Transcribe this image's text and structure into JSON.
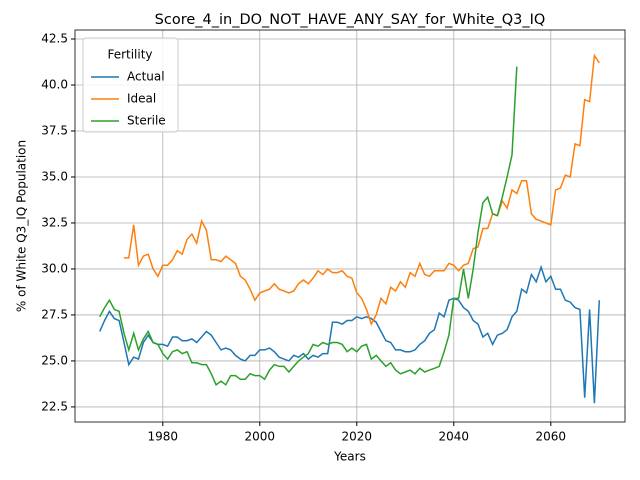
{
  "chart_data": {
    "type": "line",
    "title": "Score_4_in_DO_NOT_HAVE_ANY_SAY_for_White_Q3_IQ",
    "x_label": "Years",
    "y_label": "% of White Q3_IQ Population",
    "legend_title": "Fertility",
    "legend_position": "upper left",
    "grid": true,
    "xlim": [
      1961.9,
      2075.3
    ],
    "ylim": [
      21.68,
      42.99
    ],
    "xticks": [
      1980,
      2000,
      2020,
      2040,
      2060
    ],
    "yticks": [
      22.5,
      {
        "value": 25,
        "label": "25.0"
      },
      27.5,
      {
        "value": 30,
        "label": "30.0"
      },
      32.5,
      {
        "value": 35,
        "label": "35.0"
      },
      37.5,
      {
        "value": 40,
        "label": "40.0"
      },
      42.5
    ],
    "x": [
      1967,
      1968,
      1969,
      1970,
      1971,
      1972,
      1973,
      1974,
      1975,
      1976,
      1977,
      1978,
      1979,
      1980,
      1981,
      1982,
      1983,
      1984,
      1985,
      1986,
      1987,
      1988,
      1989,
      1990,
      1991,
      1992,
      1993,
      1994,
      1995,
      1996,
      1997,
      1998,
      1999,
      2000,
      2001,
      2002,
      2003,
      2004,
      2005,
      2006,
      2007,
      2008,
      2009,
      2010,
      2011,
      2012,
      2013,
      2014,
      2015,
      2016,
      2017,
      2018,
      2019,
      2020,
      2021,
      2022,
      2023,
      2024,
      2025,
      2026,
      2027,
      2028,
      2029,
      2030,
      2031,
      2032,
      2033,
      2034,
      2035,
      2036,
      2037,
      2038,
      2039,
      2040,
      2041,
      2042,
      2043,
      2044,
      2045,
      2046,
      2047,
      2048,
      2049,
      2050,
      2051,
      2052,
      2053,
      2054,
      2055,
      2056,
      2057,
      2058,
      2059,
      2060,
      2061,
      2062,
      2063,
      2064,
      2065,
      2066,
      2067,
      2068,
      2069,
      2070
    ],
    "series": [
      {
        "name": "Actual",
        "color": "#1f77b4",
        "values": [
          26.6,
          27.2,
          27.7,
          27.3,
          27.2,
          26.0,
          24.8,
          25.2,
          25.1,
          26.0,
          26.4,
          26.0,
          25.9,
          25.9,
          25.8,
          26.3,
          26.3,
          26.1,
          26.1,
          26.2,
          26.0,
          26.3,
          26.6,
          26.4,
          26.0,
          25.6,
          25.7,
          25.6,
          25.3,
          25.1,
          25.0,
          25.3,
          25.3,
          25.6,
          25.6,
          25.7,
          25.5,
          25.2,
          25.1,
          25.0,
          25.3,
          25.2,
          25.4,
          25.1,
          25.3,
          25.2,
          25.4,
          25.4,
          27.1,
          27.1,
          27.0,
          27.2,
          27.2,
          27.4,
          27.3,
          27.4,
          27.3,
          27.1,
          26.6,
          26.1,
          26.0,
          25.6,
          25.6,
          25.5,
          25.5,
          25.6,
          25.9,
          26.1,
          26.5,
          26.7,
          27.6,
          27.4,
          28.3,
          28.4,
          28.3,
          27.9,
          27.7,
          27.2,
          27.0,
          26.3,
          26.5,
          25.9,
          26.4,
          26.5,
          26.7,
          27.4,
          27.7,
          28.9,
          28.7,
          29.7,
          29.3,
          30.1,
          29.3,
          29.6,
          28.9,
          28.9,
          28.3,
          28.2,
          27.9,
          27.8,
          23.0,
          27.8,
          22.7,
          28.3
        ]
      },
      {
        "name": "Ideal",
        "color": "#ff7f0e",
        "values": [
          null,
          null,
          null,
          null,
          null,
          30.6,
          30.6,
          32.4,
          30.2,
          30.7,
          30.8,
          30.0,
          29.6,
          30.2,
          30.2,
          30.5,
          31.0,
          30.8,
          31.6,
          31.9,
          31.4,
          32.6,
          32.1,
          30.5,
          30.5,
          30.4,
          30.7,
          30.5,
          30.3,
          29.6,
          29.4,
          28.9,
          28.3,
          28.7,
          28.8,
          28.9,
          29.2,
          28.9,
          28.8,
          28.7,
          28.8,
          29.2,
          29.4,
          29.2,
          29.5,
          29.9,
          29.7,
          30.0,
          29.8,
          29.8,
          29.9,
          29.6,
          29.5,
          28.7,
          28.4,
          27.8,
          27.0,
          27.5,
          28.4,
          28.1,
          29.0,
          28.8,
          29.3,
          29.0,
          29.8,
          29.6,
          30.3,
          29.7,
          29.6,
          29.9,
          29.9,
          29.9,
          30.3,
          30.2,
          29.9,
          30.2,
          30.3,
          31.1,
          31.2,
          32.2,
          32.2,
          33.0,
          32.9,
          33.7,
          33.3,
          34.3,
          34.1,
          34.8,
          34.8,
          33.0,
          32.7,
          32.6,
          32.5,
          32.4,
          34.3,
          34.4,
          35.1,
          35.0,
          36.8,
          36.7,
          39.2,
          39.1,
          41.6,
          41.2
        ]
      },
      {
        "name": "Sterile",
        "color": "#2ca02c",
        "values": [
          27.4,
          27.9,
          28.3,
          27.8,
          27.7,
          26.5,
          25.6,
          26.5,
          25.6,
          26.2,
          26.6,
          26.0,
          25.9,
          25.4,
          25.1,
          25.5,
          25.6,
          25.4,
          25.5,
          24.9,
          24.9,
          24.8,
          24.8,
          24.3,
          23.7,
          23.9,
          23.7,
          24.2,
          24.2,
          24.0,
          24.0,
          24.3,
          24.2,
          24.2,
          24.0,
          24.5,
          24.8,
          24.7,
          24.7,
          24.4,
          24.7,
          25.0,
          25.2,
          25.4,
          25.9,
          25.8,
          26.0,
          25.9,
          26.0,
          26.0,
          25.9,
          25.5,
          25.7,
          25.5,
          25.8,
          25.9,
          25.1,
          25.3,
          25.0,
          24.7,
          24.9,
          24.5,
          24.3,
          24.4,
          24.5,
          24.3,
          24.6,
          24.4,
          24.5,
          24.6,
          24.7,
          25.5,
          26.4,
          28.4,
          28.4,
          30.0,
          28.4,
          30.0,
          32.0,
          33.6,
          33.9,
          33.0,
          32.9,
          33.9,
          35.0,
          36.2,
          41.0,
          null,
          null,
          null,
          null,
          null,
          null,
          null,
          null,
          null,
          null,
          null,
          null,
          null,
          null,
          null,
          null,
          null
        ]
      }
    ]
  }
}
